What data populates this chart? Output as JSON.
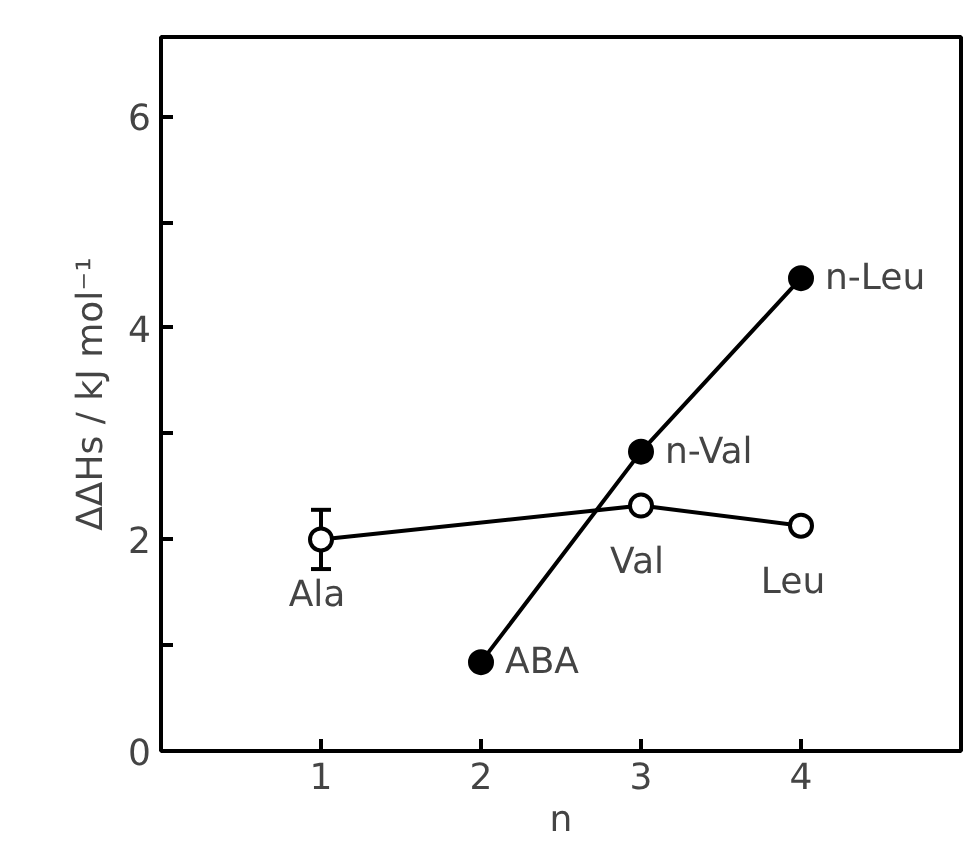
{
  "chart_data": {
    "type": "line",
    "xlabel": "n",
    "ylabel": "ΔΔHs / kJ mol⁻¹",
    "xlim": [
      0,
      5
    ],
    "ylim": [
      0,
      6.75
    ],
    "xticks": [
      1,
      2,
      3,
      4
    ],
    "yticks": [
      0,
      {
        "value": 1,
        "label": null
      },
      2,
      {
        "value": 3,
        "label": null
      },
      4,
      {
        "value": 5,
        "label": null
      },
      6
    ],
    "marker": "circle",
    "grid": false,
    "series": [
      {
        "x": [
          1,
          3,
          4
        ],
        "values": [
          2.0,
          2.32,
          2.13
        ],
        "color": "#000000",
        "errors": [
          0.28,
          null,
          null
        ]
      },
      {
        "x": [
          2,
          3,
          4
        ],
        "values": [
          0.84,
          2.83,
          4.47
        ],
        "color": "#000000"
      }
    ],
    "annotations": [
      {
        "text": "Ala",
        "x": 1,
        "y": 2.0
      },
      {
        "text": "Val",
        "x": 3,
        "y": 2.32
      },
      {
        "text": "Leu",
        "x": 4,
        "y": 2.13
      },
      {
        "text": "ABA",
        "x": 2,
        "y": 0.84
      },
      {
        "text": "n-Val",
        "x": 3,
        "y": 2.83
      },
      {
        "text": "n-Leu",
        "x": 4,
        "y": 4.47
      }
    ]
  }
}
